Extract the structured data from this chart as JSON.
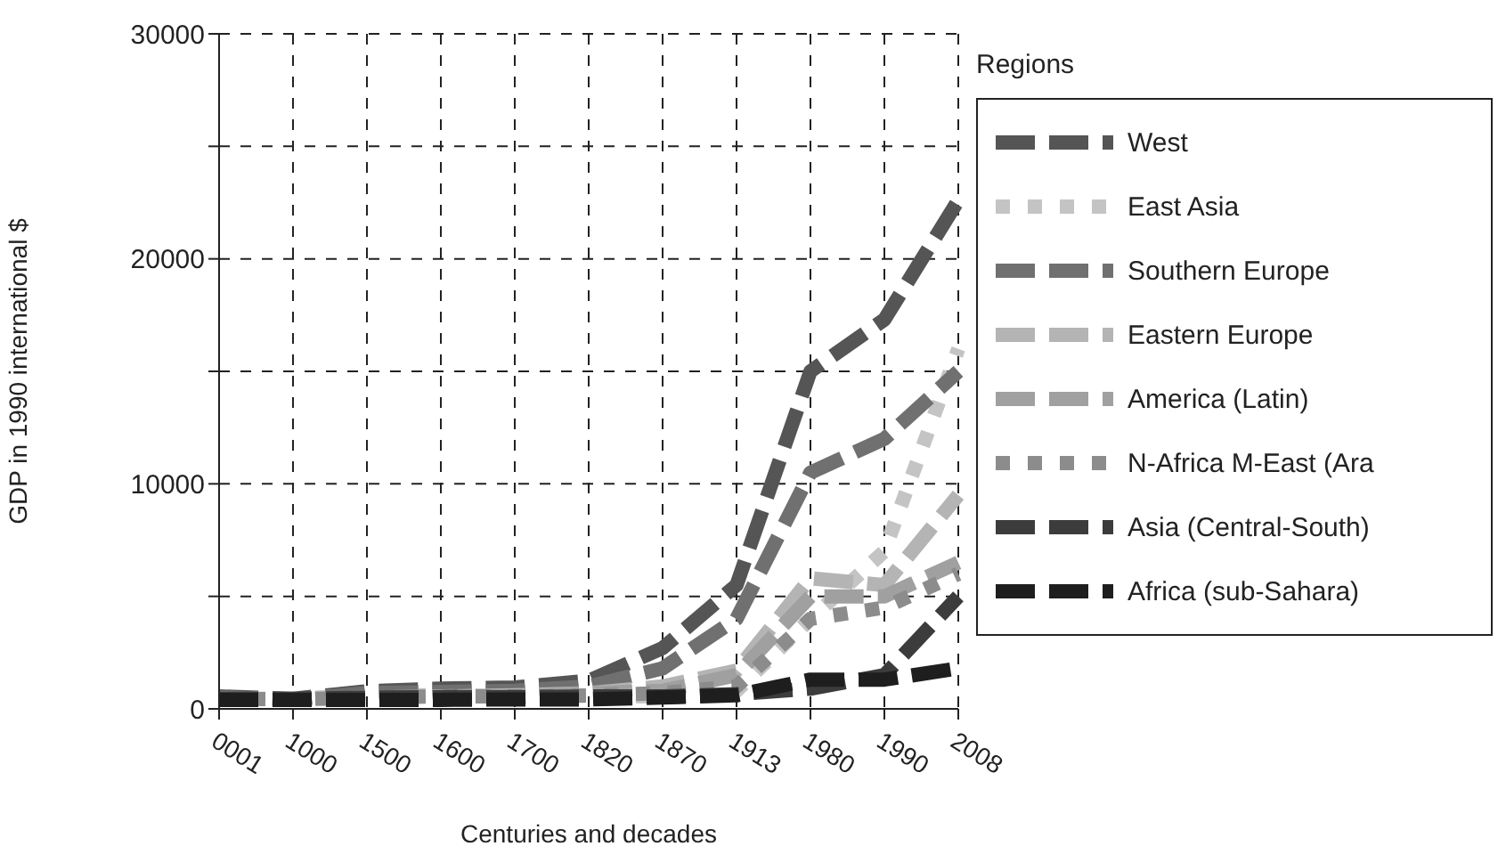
{
  "chart_data": {
    "type": "line",
    "xlabel": "Centuries and decades",
    "ylabel": "GDP in 1990 international $",
    "legend_title": "Regions",
    "legend": "right",
    "grid": true,
    "categories": [
      "0001",
      "1000",
      "1500",
      "1600",
      "1700",
      "1820",
      "1870",
      "1913",
      "1980",
      "1990",
      "2008"
    ],
    "ylim": [
      0,
      30000
    ],
    "yticks": [
      0,
      {
        "value": 5000,
        "label": null
      },
      10000,
      {
        "value": 15000,
        "label": null
      },
      20000,
      {
        "value": 25000,
        "label": null
      },
      30000
    ],
    "series": [
      {
        "name": "West",
        "color": "#555555",
        "line_style": "dashed",
        "values": [
          550,
          450,
          780,
          900,
          950,
          1250,
          2700,
          5500,
          15000,
          17300,
          22600
        ]
      },
      {
        "name": "East Asia",
        "color": "#c4c4c4",
        "line_style": "dotted",
        "values": [
          450,
          450,
          600,
          600,
          580,
          580,
          550,
          800,
          4000,
          7000,
          16000
        ]
      },
      {
        "name": "Southern Europe",
        "color": "#707070",
        "line_style": "dashed",
        "values": [
          500,
          400,
          700,
          750,
          800,
          1000,
          1800,
          4000,
          10500,
          12000,
          15000
        ]
      },
      {
        "name": "Eastern Europe",
        "color": "#b4b4b4",
        "line_style": "dashed",
        "values": [
          400,
          400,
          500,
          550,
          600,
          700,
          1000,
          1700,
          5800,
          5500,
          9500
        ]
      },
      {
        "name": "America (Latin)",
        "color": "#a0a0a0",
        "line_style": "dashed",
        "values": [
          400,
          400,
          420,
          450,
          500,
          700,
          800,
          1500,
          5000,
          5000,
          6500
        ]
      },
      {
        "name": "N-Africa M-East (Ara",
        "color": "#8c8c8c",
        "line_style": "dotted",
        "values": [
          450,
          420,
          500,
          550,
          550,
          600,
          700,
          1000,
          4000,
          4500,
          6000
        ]
      },
      {
        "name": "Asia (Central-South)",
        "color": "#3c3c3c",
        "line_style": "dashed",
        "values": [
          450,
          450,
          500,
          520,
          520,
          550,
          550,
          650,
          900,
          1500,
          5000
        ]
      },
      {
        "name": "Africa (sub-Sahara)",
        "color": "#1e1e1e",
        "line_style": "dashed",
        "values": [
          400,
          400,
          400,
          400,
          420,
          420,
          500,
          600,
          1300,
          1300,
          1800
        ]
      }
    ]
  }
}
